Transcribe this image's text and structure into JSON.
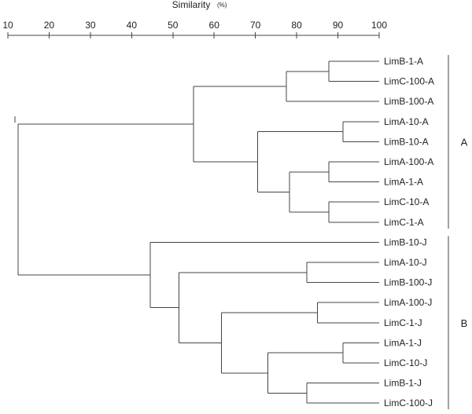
{
  "axis": {
    "title": "Similarity",
    "unit": "(%)",
    "range": [
      10,
      100
    ],
    "ticks": [
      10,
      20,
      30,
      40,
      50,
      60,
      70,
      80,
      90,
      100
    ]
  },
  "leaves": [
    "LimB-1-A",
    "LimC-100-A",
    "LimB-100-A",
    "LimA-10-A",
    "LimB-10-A",
    "LimA-100-A",
    "LimA-1-A",
    "LimC-10-A",
    "LimC-1-A",
    "LimB-10-J",
    "LimA-10-J",
    "LimB-100-J",
    "LimA-100-J",
    "LimC-1-J",
    "LimA-1-J",
    "LimC-10-J",
    "LimB-1-J",
    "LimC-100-J"
  ],
  "tree": {
    "s": 12.5,
    "c": [
      {
        "s": 55,
        "c": [
          {
            "s": 77.5,
            "c": [
              {
                "s": 87.8,
                "c": [
                  0,
                  1
                ]
              },
              2
            ]
          },
          {
            "s": 70.5,
            "c": [
              {
                "s": 91.2,
                "c": [
                  3,
                  4
                ]
              },
              {
                "s": 78.3,
                "c": [
                  {
                    "s": 87.8,
                    "c": [
                      5,
                      6
                    ]
                  },
                  {
                    "s": 87.8,
                    "c": [
                      7,
                      8
                    ]
                  }
                ]
              }
            ]
          }
        ]
      },
      {
        "s": 44.5,
        "c": [
          9,
          {
            "s": 51.5,
            "c": [
              {
                "s": 82.5,
                "c": [
                  10,
                  11
                ]
              },
              {
                "s": 61.8,
                "c": [
                  {
                    "s": 85,
                    "c": [
                      12,
                      13
                    ]
                  },
                  {
                    "s": 73,
                    "c": [
                      {
                        "s": 91.2,
                        "c": [
                          14,
                          15
                        ]
                      },
                      {
                        "s": 82.5,
                        "c": [
                          16,
                          17
                        ]
                      }
                    ]
                  }
                ]
              }
            ]
          }
        ]
      }
    ]
  },
  "groups": [
    {
      "label": "A",
      "from": 0,
      "to": 8
    },
    {
      "label": "B",
      "from": 9,
      "to": 17
    }
  ]
}
